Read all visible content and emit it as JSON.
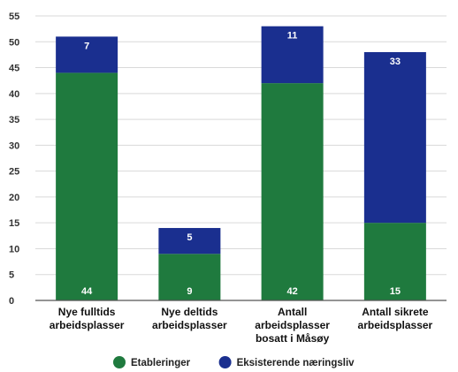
{
  "chart_data": {
    "type": "bar",
    "stacked": true,
    "title": "",
    "xlabel": "",
    "ylabel": "",
    "ylim": [
      0,
      55
    ],
    "yticks": [
      0,
      5,
      10,
      15,
      20,
      25,
      30,
      35,
      40,
      45,
      50,
      55
    ],
    "grid": true,
    "legend_position": "bottom",
    "categories": [
      [
        "Nye fulltids",
        "arbeidsplasser"
      ],
      [
        "Nye deltids",
        "arbeidsplasser"
      ],
      [
        "Antall",
        "arbeidsplasser",
        "bosatt i Måsøy"
      ],
      [
        "Antall sikrete",
        "arbeidsplasser"
      ]
    ],
    "series": [
      {
        "name": "Etableringer",
        "color": "#1f7a3e",
        "values": [
          44,
          9,
          42,
          15
        ]
      },
      {
        "name": "Eksisterende næringsliv",
        "color": "#1a2f8f",
        "values": [
          7,
          5,
          11,
          33
        ]
      }
    ]
  }
}
